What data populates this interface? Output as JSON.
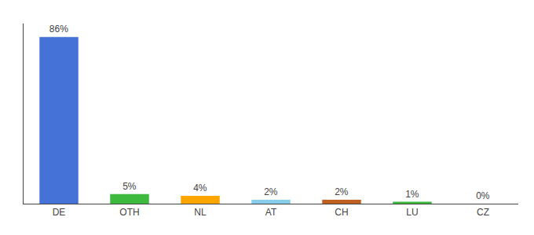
{
  "chart_data": {
    "type": "bar",
    "categories": [
      "DE",
      "OTH",
      "NL",
      "AT",
      "CH",
      "LU",
      "CZ"
    ],
    "values": [
      86,
      5,
      4,
      2,
      2,
      1,
      0
    ],
    "value_labels": [
      "86%",
      "5%",
      "4%",
      "2%",
      "2%",
      "1%",
      "0%"
    ],
    "data_labels": true,
    "colors": [
      "#4472d6",
      "#3dba3d",
      "#ffa500",
      "#87ceeb",
      "#c06020",
      "#3dba3d",
      "#cccccc"
    ],
    "ylim": [
      0,
      93
    ],
    "tick_labels": "x",
    "grid": false
  }
}
